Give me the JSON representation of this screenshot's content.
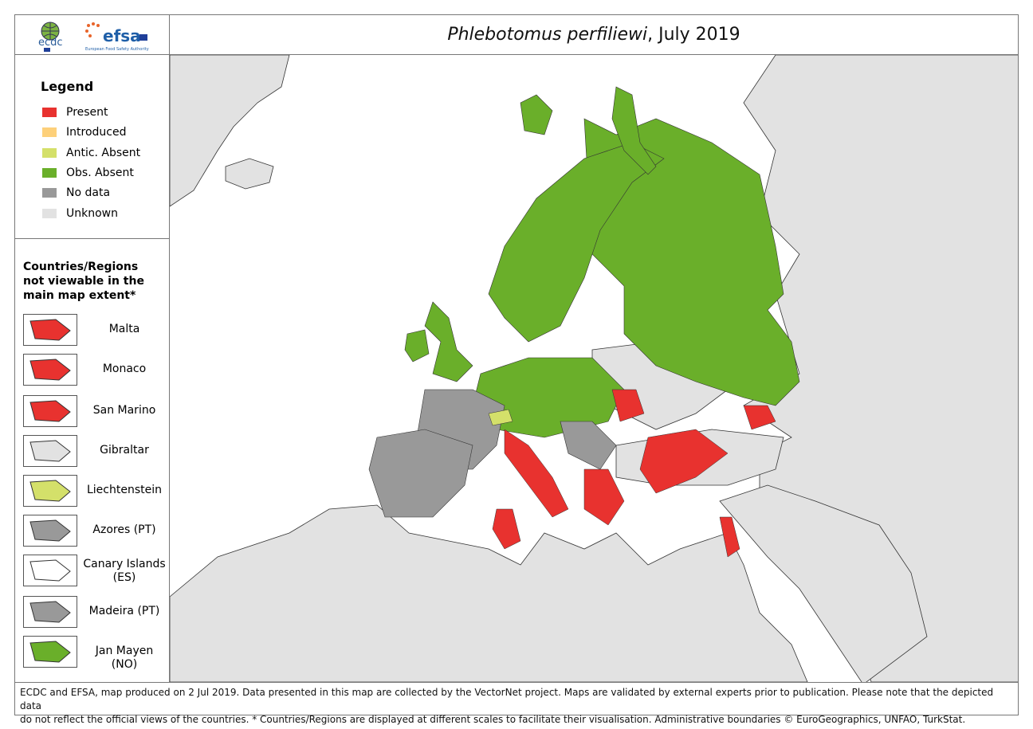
{
  "header": {
    "title_species": "Phlebotomus perfiliewi",
    "title_date": ", July 2019",
    "logos": [
      "ecdc",
      "efsa European Food Safety Authority"
    ]
  },
  "legend": {
    "title": "Legend",
    "items": [
      {
        "label": "Present",
        "color": "#e8322f"
      },
      {
        "label": "Introduced",
        "color": "#fdd07a"
      },
      {
        "label": "Antic. Absent",
        "color": "#d4e06a"
      },
      {
        "label": "Obs. Absent",
        "color": "#6aaf2a"
      },
      {
        "label": "No data",
        "color": "#999999"
      },
      {
        "label": "Unknown",
        "color": "#e2e2e2"
      }
    ]
  },
  "insets": {
    "title": "Countries/Regions not viewable in the main map extent*",
    "items": [
      {
        "label": "Malta",
        "status_color": "#e8322f"
      },
      {
        "label": "Monaco",
        "status_color": "#e8322f"
      },
      {
        "label": "San Marino",
        "status_color": "#e8322f"
      },
      {
        "label": "Gibraltar",
        "status_color": "#e2e2e2"
      },
      {
        "label": "Liechtenstein",
        "status_color": "#d4e06a"
      },
      {
        "label": "Azores (PT)",
        "status_color": "#999999"
      },
      {
        "label": "Canary Islands (ES)",
        "status_color": "#ffffff"
      },
      {
        "label": "Madeira (PT)",
        "status_color": "#999999"
      },
      {
        "label": "Jan Mayen (NO)",
        "status_color": "#6aaf2a"
      }
    ]
  },
  "footer": {
    "line1": "ECDC and EFSA, map produced on 2 Jul 2019. Data presented in this map are collected by the VectorNet project. Maps are validated by external experts prior to publication. Please note that the depicted data",
    "line2": "do not reflect the official views of the countries. * Countries/Regions are displayed at different scales to facilitate their visualisation. Administrative boundaries © EuroGeographics, UNFAO, TurkStat."
  }
}
